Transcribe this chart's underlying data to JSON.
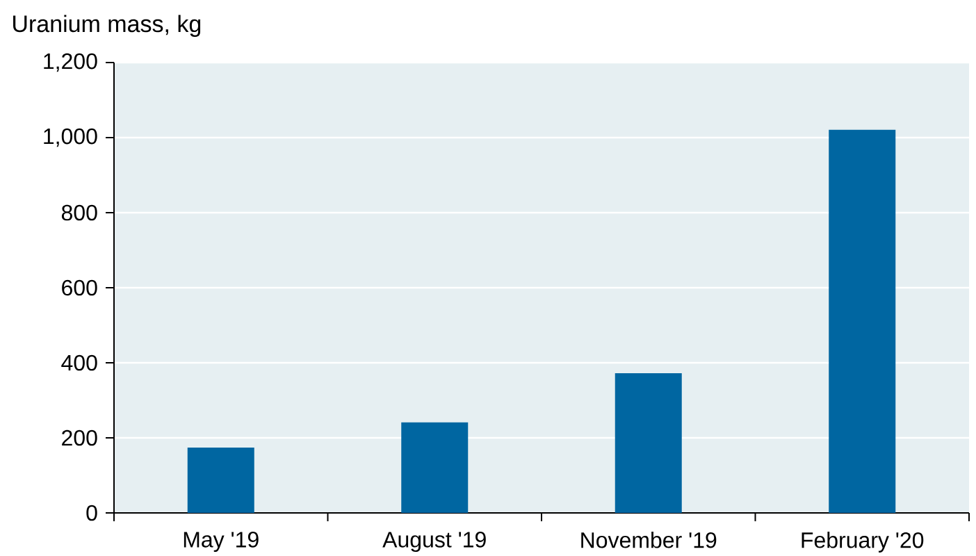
{
  "chart_data": {
    "type": "bar",
    "ylabel": "Uranium mass, kg",
    "categories": [
      "May '19",
      "August '19",
      "November '19",
      "February '20"
    ],
    "values": [
      174,
      241,
      372,
      1021
    ],
    "color": "#0066a1",
    "ylim": [
      0,
      1200
    ],
    "yticks": [
      0,
      {
        "value": 200,
        "label": "200"
      },
      {
        "value": 400,
        "label": "400"
      },
      {
        "value": 600,
        "label": "600"
      },
      {
        "value": 800,
        "label": "800"
      },
      {
        "value": 1000,
        "label": "1,000"
      },
      {
        "value": 1200,
        "label": "1,200"
      }
    ],
    "grid": "y"
  }
}
